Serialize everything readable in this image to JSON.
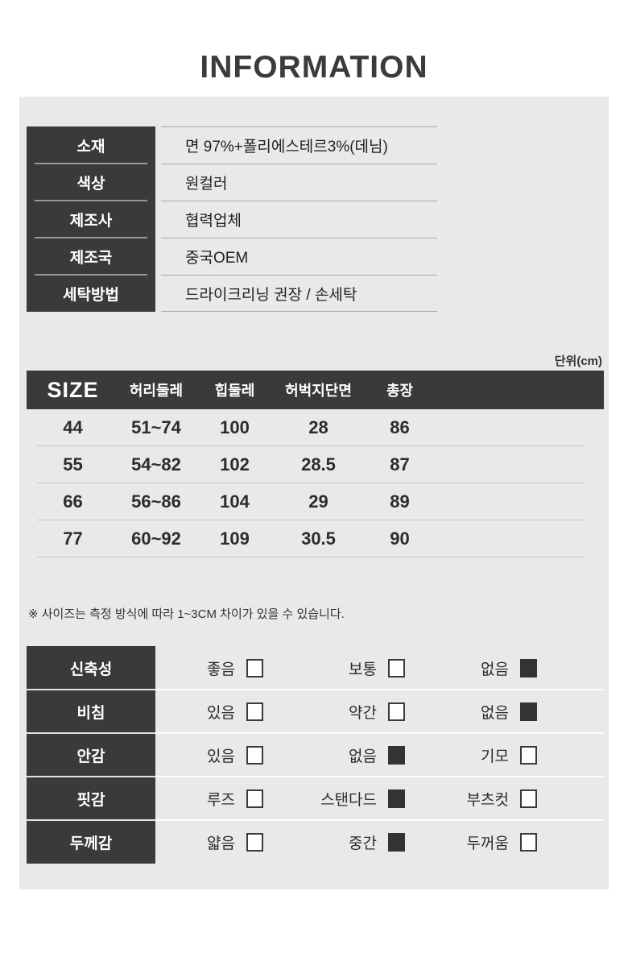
{
  "title": "INFORMATION",
  "unit_label": "단위(cm)",
  "size_note": "※ 사이즈는 측정 방식에 따라 1~3CM 차이가 있을 수 있습니다.",
  "colors": {
    "panel_bg": "#e9e9e9",
    "dark_cell": "#3a3a3a",
    "checkbox_fill": "#333333"
  },
  "info_table": {
    "rows": [
      {
        "label": "소재",
        "value": "면 97%+폴리에스테르3%(데님)"
      },
      {
        "label": "색상",
        "value": "원컬러"
      },
      {
        "label": "제조사",
        "value": "협력업체"
      },
      {
        "label": "제조국",
        "value": "중국OEM"
      },
      {
        "label": "세탁방법",
        "value": "드라이크리닝 권장 / 손세탁"
      }
    ]
  },
  "size_table": {
    "columns": [
      "SIZE",
      "허리둘레",
      "힙둘레",
      "허벅지단면",
      "총장"
    ],
    "rows": [
      [
        "44",
        "51~74",
        "100",
        "28",
        "86"
      ],
      [
        "55",
        "54~82",
        "102",
        "28.5",
        "87"
      ],
      [
        "66",
        "56~86",
        "104",
        "29",
        "89"
      ],
      [
        "77",
        "60~92",
        "109",
        "30.5",
        "90"
      ]
    ]
  },
  "attribute_table": {
    "rows": [
      {
        "label": "신축성",
        "options": [
          {
            "text": "좋음",
            "checked": false
          },
          {
            "text": "보통",
            "checked": false
          },
          {
            "text": "없음",
            "checked": true
          }
        ]
      },
      {
        "label": "비침",
        "options": [
          {
            "text": "있음",
            "checked": false
          },
          {
            "text": "약간",
            "checked": false
          },
          {
            "text": "없음",
            "checked": true
          }
        ]
      },
      {
        "label": "안감",
        "options": [
          {
            "text": "있음",
            "checked": false
          },
          {
            "text": "없음",
            "checked": true
          },
          {
            "text": "기모",
            "checked": false
          }
        ]
      },
      {
        "label": "핏감",
        "options": [
          {
            "text": "루즈",
            "checked": false
          },
          {
            "text": "스탠다드",
            "checked": true
          },
          {
            "text": "부츠컷",
            "checked": false
          }
        ]
      },
      {
        "label": "두께감",
        "options": [
          {
            "text": "얇음",
            "checked": false
          },
          {
            "text": "중간",
            "checked": true
          },
          {
            "text": "두꺼움",
            "checked": false
          }
        ]
      }
    ]
  }
}
